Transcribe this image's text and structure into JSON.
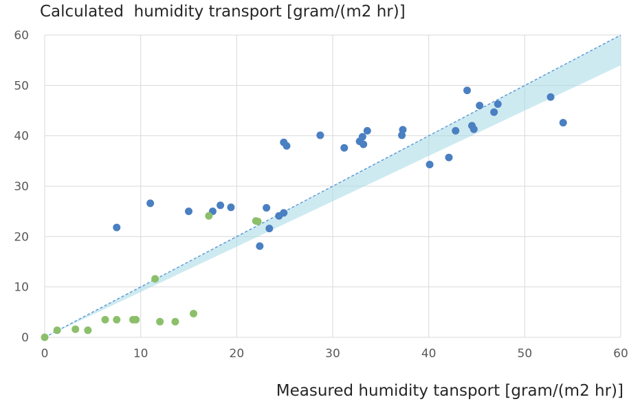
{
  "chart_data": {
    "type": "scatter",
    "title": "Calculated  humidity transport [gram/(m2 hr)]",
    "xlabel": "Measured humidity tansport [gram/(m2 hr)]",
    "ylabel": "",
    "xlim": [
      0,
      60
    ],
    "ylim": [
      0,
      60
    ],
    "xticks": [
      "0",
      "10",
      "20",
      "30",
      "40",
      "50",
      "60"
    ],
    "yticks": [
      "0",
      "10",
      "20",
      "30",
      "40",
      "50",
      "60"
    ],
    "grid": true,
    "series": [
      {
        "color": "#4a7fc1",
        "points": [
          [
            7.5,
            21.8
          ],
          [
            11,
            26.6
          ],
          [
            15,
            25
          ],
          [
            17.5,
            25
          ],
          [
            18.3,
            26.2
          ],
          [
            19.4,
            25.8
          ],
          [
            22.4,
            18.1
          ],
          [
            23.1,
            25.7
          ],
          [
            23.4,
            21.6
          ],
          [
            24.4,
            24.1
          ],
          [
            24.9,
            24.7
          ],
          [
            24.9,
            38.7
          ],
          [
            25.2,
            38
          ],
          [
            28.7,
            40.1
          ],
          [
            31.2,
            37.6
          ],
          [
            32.8,
            38.9
          ],
          [
            33.1,
            39.8
          ],
          [
            33.2,
            38.3
          ],
          [
            33.6,
            41
          ],
          [
            37.2,
            40.1
          ],
          [
            37.3,
            41.2
          ],
          [
            40.1,
            34.3
          ],
          [
            42.1,
            35.7
          ],
          [
            42.8,
            41
          ],
          [
            44,
            49
          ],
          [
            44.5,
            42
          ],
          [
            44.7,
            41.3
          ],
          [
            45.3,
            46
          ],
          [
            46.8,
            44.7
          ],
          [
            47.2,
            46.3
          ],
          [
            52.7,
            47.7
          ],
          [
            54,
            42.6
          ]
        ]
      },
      {
        "color": "#8cbf6a",
        "points": [
          [
            0,
            0
          ],
          [
            1.3,
            1.4
          ],
          [
            3.2,
            1.6
          ],
          [
            4.5,
            1.4
          ],
          [
            6.3,
            3.5
          ],
          [
            7.5,
            3.5
          ],
          [
            9.2,
            3.5
          ],
          [
            9.5,
            3.5
          ],
          [
            12,
            3.1
          ],
          [
            13.6,
            3.1
          ],
          [
            15.5,
            4.7
          ],
          [
            17.1,
            24.1
          ],
          [
            22,
            23.1
          ],
          [
            22.2,
            23
          ],
          [
            11.5,
            11.6
          ]
        ]
      }
    ],
    "reference_line": {
      "style": "dashed",
      "color": "#5b9bd5",
      "points": [
        [
          0,
          0
        ],
        [
          60,
          60
        ]
      ]
    },
    "confidence_band": {
      "color": "#a6d8e6",
      "lower": [
        [
          0,
          0
        ],
        [
          60,
          54
        ]
      ],
      "upper": [
        [
          0,
          0
        ],
        [
          60,
          66
        ]
      ]
    }
  }
}
